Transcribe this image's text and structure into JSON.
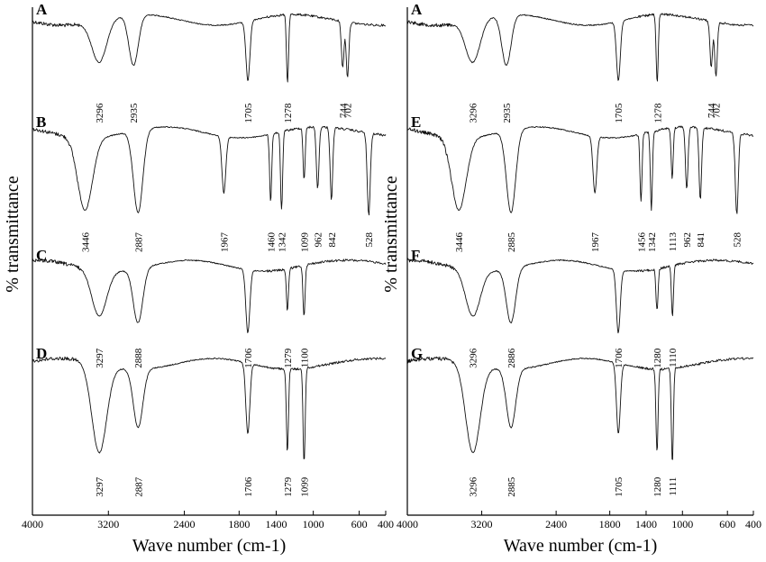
{
  "chart_data": [
    {
      "type": "line",
      "xlabel": "Wave number (cm-1)",
      "ylabel": "% transmittance",
      "xlim": [
        4000,
        400
      ],
      "x_ticks": [
        "4000",
        "3200",
        "2400",
        "1800",
        "1400",
        "1000",
        "600",
        "400"
      ],
      "grid": false,
      "series": [
        {
          "name": "A",
          "peaks": [
            3296,
            2935,
            1705,
            1278,
            744,
            702
          ]
        },
        {
          "name": "B",
          "peaks": [
            3446,
            2887,
            1967,
            1460,
            1342,
            1099,
            962,
            842,
            528
          ]
        },
        {
          "name": "C",
          "peaks": [
            3297,
            2888,
            1706,
            1279,
            1100
          ]
        },
        {
          "name": "D",
          "peaks": [
            3297,
            2887,
            1706,
            1279,
            1099
          ]
        }
      ]
    },
    {
      "type": "line",
      "xlabel": "Wave number (cm-1)",
      "ylabel": "% transmittance",
      "xlim": [
        4000,
        400
      ],
      "x_ticks": [
        "4000",
        "3200",
        "2400",
        "1800",
        "1400",
        "1000",
        "600",
        "400"
      ],
      "grid": false,
      "series": [
        {
          "name": "A",
          "peaks": [
            3296,
            2935,
            1705,
            1278,
            744,
            702
          ]
        },
        {
          "name": "E",
          "peaks": [
            3446,
            2885,
            1967,
            1456,
            1342,
            1113,
            962,
            841,
            528
          ]
        },
        {
          "name": "F",
          "peaks": [
            3296,
            2886,
            1706,
            1280,
            1110
          ]
        },
        {
          "name": "G",
          "peaks": [
            3296,
            2885,
            1705,
            1280,
            1111
          ]
        }
      ]
    }
  ]
}
